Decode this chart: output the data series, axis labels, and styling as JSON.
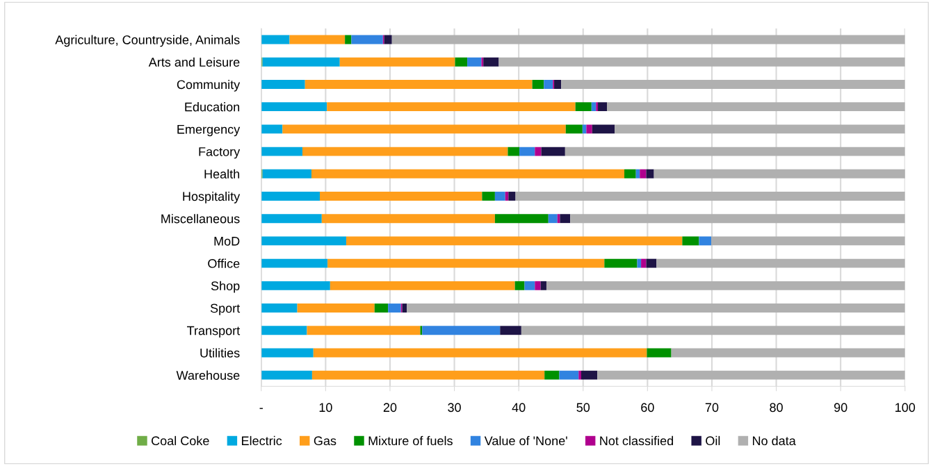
{
  "chart_data": {
    "type": "bar",
    "orientation": "horizontal",
    "stacked": true,
    "categories": [
      "Agriculture, Countryside, Animals",
      "Arts and Leisure",
      "Community",
      "Education",
      "Emergency",
      "Factory",
      "Health",
      "Hospitality",
      "Miscellaneous",
      "MoD",
      "Office",
      "Shop",
      "Sport",
      "Transport",
      "Utilities",
      "Warehouse"
    ],
    "series": [
      {
        "name": "Coal Coke",
        "color": "#70ad47",
        "values": [
          0,
          0.2,
          0,
          0,
          0,
          0,
          0.2,
          0,
          0,
          0,
          0,
          0,
          0,
          0,
          0,
          0
        ]
      },
      {
        "name": "Electric",
        "color": "#00a9e0",
        "values": [
          4.4,
          12.0,
          6.8,
          10.2,
          3.3,
          6.4,
          7.6,
          9.1,
          9.4,
          13.2,
          10.3,
          10.7,
          5.6,
          7.1,
          8.1,
          7.9
        ]
      },
      {
        "name": "Gas",
        "color": "#ff9e1b",
        "values": [
          8.6,
          17.9,
          35.3,
          38.6,
          44.0,
          31.9,
          48.6,
          25.2,
          26.9,
          52.2,
          43.0,
          28.7,
          12.0,
          17.6,
          51.8,
          36.1
        ]
      },
      {
        "name": "Mixture of fuels",
        "color": "#009100",
        "values": [
          1.0,
          1.9,
          1.8,
          2.5,
          2.6,
          1.8,
          1.8,
          2.0,
          8.3,
          2.6,
          5.1,
          1.5,
          2.1,
          0.3,
          3.8,
          2.3
        ]
      },
      {
        "name": "Value of 'None'",
        "color": "#3183e0",
        "values": [
          4.9,
          2.2,
          1.4,
          0.7,
          0.6,
          2.4,
          0.6,
          1.6,
          1.4,
          1.9,
          0.6,
          1.6,
          2.0,
          12.1,
          0,
          3.0
        ]
      },
      {
        "name": "Not classified",
        "color": "#b0008e",
        "values": [
          0.2,
          0.3,
          0.2,
          0.3,
          0.9,
          1.0,
          1.0,
          0.5,
          0.4,
          0,
          0.8,
          0.9,
          0.2,
          0,
          0,
          0.4
        ]
      },
      {
        "name": "Oil",
        "color": "#1e1446",
        "values": [
          1.2,
          2.4,
          1.1,
          1.4,
          3.5,
          3.7,
          1.2,
          1.1,
          1.6,
          0,
          1.6,
          0.9,
          0.7,
          3.3,
          0,
          2.5
        ]
      },
      {
        "name": "No data",
        "color": "#b0b0b0",
        "values": [
          79.7,
          63.1,
          53.4,
          46.3,
          45.1,
          52.8,
          39.1,
          60.5,
          52.0,
          30.1,
          38.6,
          55.7,
          77.4,
          59.6,
          36.3,
          47.8
        ]
      }
    ],
    "xlim": [
      0,
      100
    ],
    "xticks": [
      {
        "value": 0,
        "label": "-"
      },
      10,
      20,
      30,
      40,
      50,
      60,
      70,
      80,
      90,
      100
    ],
    "grid": "x",
    "legend": "bottom"
  }
}
